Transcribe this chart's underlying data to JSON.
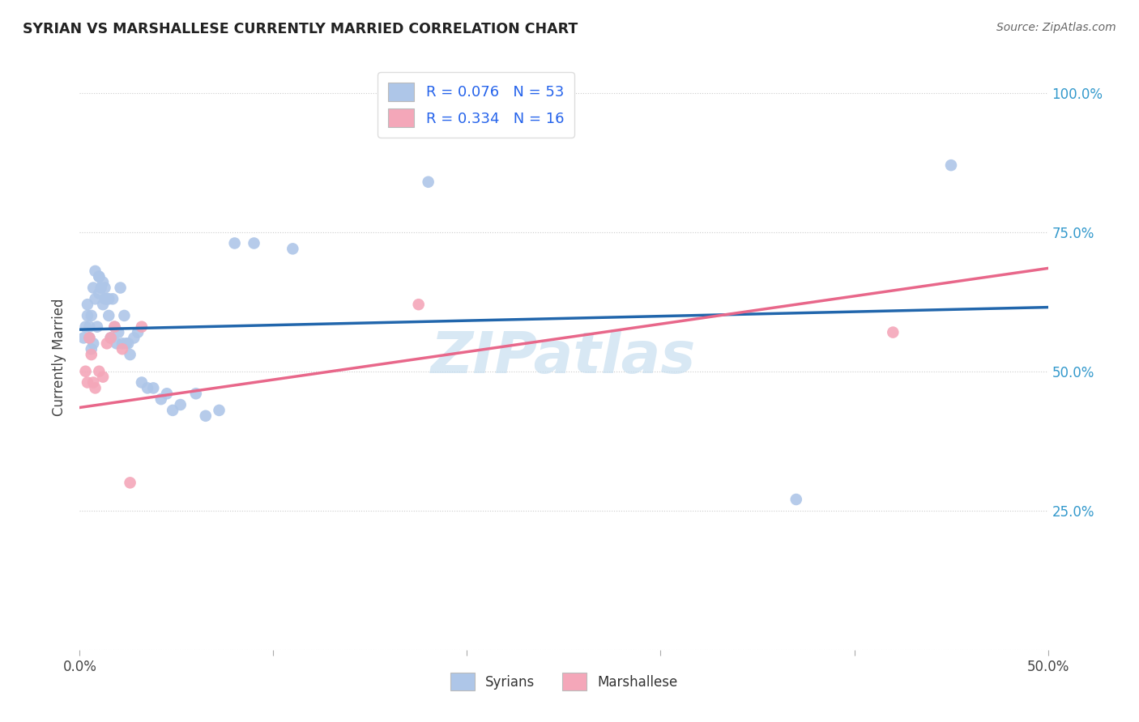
{
  "title": "SYRIAN VS MARSHALLESE CURRENTLY MARRIED CORRELATION CHART",
  "source": "Source: ZipAtlas.com",
  "ylabel": "Currently Married",
  "xlim": [
    0.0,
    0.5
  ],
  "ylim": [
    0.0,
    1.05
  ],
  "yticks": [
    0.0,
    0.25,
    0.5,
    0.75,
    1.0
  ],
  "ytick_labels": [
    "",
    "25.0%",
    "50.0%",
    "75.0%",
    "100.0%"
  ],
  "xticks": [
    0.0,
    0.1,
    0.2,
    0.3,
    0.4,
    0.5
  ],
  "xtick_labels": [
    "0.0%",
    "",
    "",
    "",
    "",
    "50.0%"
  ],
  "legend_r1": "R = 0.076   N = 53",
  "legend_r2": "R = 0.334   N = 16",
  "legend_label1": "Syrians",
  "legend_label2": "Marshallese",
  "syrians_x": [
    0.002,
    0.003,
    0.004,
    0.004,
    0.005,
    0.005,
    0.006,
    0.006,
    0.007,
    0.007,
    0.008,
    0.008,
    0.009,
    0.01,
    0.01,
    0.01,
    0.011,
    0.012,
    0.012,
    0.013,
    0.013,
    0.014,
    0.015,
    0.015,
    0.016,
    0.017,
    0.018,
    0.019,
    0.02,
    0.021,
    0.022,
    0.023,
    0.024,
    0.025,
    0.026,
    0.028,
    0.03,
    0.032,
    0.035,
    0.038,
    0.042,
    0.045,
    0.048,
    0.052,
    0.06,
    0.065,
    0.072,
    0.08,
    0.09,
    0.11,
    0.18,
    0.37,
    0.45
  ],
  "syrians_y": [
    0.56,
    0.58,
    0.6,
    0.62,
    0.56,
    0.58,
    0.54,
    0.6,
    0.55,
    0.65,
    0.63,
    0.68,
    0.58,
    0.64,
    0.67,
    0.67,
    0.65,
    0.62,
    0.66,
    0.63,
    0.65,
    0.63,
    0.6,
    0.63,
    0.56,
    0.63,
    0.58,
    0.55,
    0.57,
    0.65,
    0.55,
    0.6,
    0.55,
    0.55,
    0.53,
    0.56,
    0.57,
    0.48,
    0.47,
    0.47,
    0.45,
    0.46,
    0.43,
    0.44,
    0.46,
    0.42,
    0.43,
    0.73,
    0.73,
    0.72,
    0.84,
    0.27,
    0.87
  ],
  "marshallese_x": [
    0.003,
    0.004,
    0.005,
    0.006,
    0.007,
    0.008,
    0.01,
    0.012,
    0.014,
    0.016,
    0.018,
    0.022,
    0.026,
    0.032,
    0.175,
    0.42
  ],
  "marshallese_y": [
    0.5,
    0.48,
    0.56,
    0.53,
    0.48,
    0.47,
    0.5,
    0.49,
    0.55,
    0.56,
    0.58,
    0.54,
    0.3,
    0.58,
    0.62,
    0.57
  ],
  "blue_line_x0": 0.0,
  "blue_line_x1": 0.5,
  "blue_line_y0": 0.575,
  "blue_line_y1": 0.615,
  "pink_line_x0": 0.0,
  "pink_line_x1": 0.5,
  "pink_line_y0": 0.435,
  "pink_line_y1": 0.685,
  "blue_color": "#aec6e8",
  "pink_color": "#f4a7b9",
  "blue_line_color": "#2166ac",
  "pink_line_color": "#e8678a",
  "legend_text_color": "#2563eb",
  "background_color": "#ffffff",
  "grid_color": "#cccccc",
  "watermark": "ZIPatlas",
  "watermark_color": "#c8dff0",
  "title_color": "#222222",
  "source_color": "#666666",
  "ylabel_color": "#444444",
  "ytick_color": "#3399cc",
  "xtick_color": "#444444"
}
